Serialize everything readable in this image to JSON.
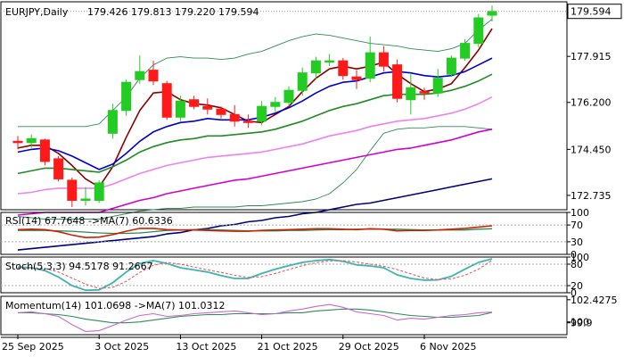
{
  "chart_data": {
    "type": "candlestick",
    "main": {
      "title": "EURJPY,Daily",
      "ohlc_text": "179.426 179.813 179.220 179.594",
      "last_price": "179.594",
      "last_price_value": 179.594,
      "ylim": [
        172.2,
        179.95
      ],
      "yticks": [
        {
          "value": 179.594,
          "label": "179.594"
        },
        {
          "value": 177.915,
          "label": "177.915"
        },
        {
          "value": 176.2,
          "label": "176.200"
        },
        {
          "value": 174.45,
          "label": "174.450"
        },
        {
          "value": 172.735,
          "label": "172.735"
        }
      ],
      "candles": [
        {
          "date": "2025-09-25",
          "o": 174.75,
          "h": 174.95,
          "l": 174.45,
          "c": 174.7
        },
        {
          "date": "2025-09-26",
          "o": 174.7,
          "h": 175.0,
          "l": 174.5,
          "c": 174.85
        },
        {
          "date": "2025-09-29",
          "o": 174.8,
          "h": 174.85,
          "l": 173.85,
          "c": 174.0
        },
        {
          "date": "2025-09-30",
          "o": 174.1,
          "h": 174.2,
          "l": 173.25,
          "c": 173.35
        },
        {
          "date": "2025-10-01",
          "o": 173.3,
          "h": 173.4,
          "l": 172.3,
          "c": 172.55
        },
        {
          "date": "2025-10-02",
          "o": 172.6,
          "h": 173.05,
          "l": 172.35,
          "c": 172.6
        },
        {
          "date": "2025-10-03",
          "o": 172.55,
          "h": 173.3,
          "l": 172.45,
          "c": 173.2
        },
        {
          "date": "2025-10-06",
          "o": 175.05,
          "h": 176.15,
          "l": 174.85,
          "c": 175.9
        },
        {
          "date": "2025-10-07",
          "o": 175.9,
          "h": 177.05,
          "l": 175.7,
          "c": 176.95
        },
        {
          "date": "2025-10-08",
          "o": 177.05,
          "h": 177.95,
          "l": 176.9,
          "c": 177.35
        },
        {
          "date": "2025-10-09",
          "o": 177.4,
          "h": 177.75,
          "l": 176.85,
          "c": 177.0
        },
        {
          "date": "2025-10-10",
          "o": 176.9,
          "h": 177.0,
          "l": 175.55,
          "c": 175.65
        },
        {
          "date": "2025-10-13",
          "o": 175.65,
          "h": 176.45,
          "l": 175.5,
          "c": 176.25
        },
        {
          "date": "2025-10-14",
          "o": 176.3,
          "h": 176.45,
          "l": 175.95,
          "c": 176.05
        },
        {
          "date": "2025-10-15",
          "o": 176.05,
          "h": 176.35,
          "l": 175.75,
          "c": 175.95
        },
        {
          "date": "2025-10-16",
          "o": 175.95,
          "h": 176.05,
          "l": 175.6,
          "c": 175.75
        },
        {
          "date": "2025-10-17",
          "o": 175.75,
          "h": 176.1,
          "l": 175.3,
          "c": 175.5
        },
        {
          "date": "2025-10-20",
          "o": 175.5,
          "h": 175.75,
          "l": 175.25,
          "c": 175.45
        },
        {
          "date": "2025-10-21",
          "o": 175.5,
          "h": 176.25,
          "l": 175.35,
          "c": 176.05
        },
        {
          "date": "2025-10-22",
          "o": 176.05,
          "h": 176.4,
          "l": 175.85,
          "c": 176.2
        },
        {
          "date": "2025-10-23",
          "o": 176.2,
          "h": 176.8,
          "l": 176.05,
          "c": 176.65
        },
        {
          "date": "2025-10-24",
          "o": 176.65,
          "h": 177.5,
          "l": 176.45,
          "c": 177.3
        },
        {
          "date": "2025-10-27",
          "o": 177.3,
          "h": 177.9,
          "l": 177.05,
          "c": 177.75
        },
        {
          "date": "2025-10-28",
          "o": 177.7,
          "h": 178.0,
          "l": 177.55,
          "c": 177.75
        },
        {
          "date": "2025-10-29",
          "o": 177.75,
          "h": 177.85,
          "l": 177.05,
          "c": 177.2
        },
        {
          "date": "2025-10-30",
          "o": 177.15,
          "h": 177.4,
          "l": 176.7,
          "c": 177.05
        },
        {
          "date": "2025-10-31",
          "o": 177.1,
          "h": 178.65,
          "l": 176.95,
          "c": 178.05
        },
        {
          "date": "2025-11-03",
          "o": 178.05,
          "h": 178.3,
          "l": 177.35,
          "c": 177.55
        },
        {
          "date": "2025-11-04",
          "o": 177.6,
          "h": 177.8,
          "l": 176.2,
          "c": 176.35
        },
        {
          "date": "2025-11-05",
          "o": 176.3,
          "h": 177.25,
          "l": 175.75,
          "c": 176.75
        },
        {
          "date": "2025-11-06",
          "o": 176.6,
          "h": 176.75,
          "l": 176.3,
          "c": 176.55
        },
        {
          "date": "2025-11-07",
          "o": 176.55,
          "h": 177.45,
          "l": 176.4,
          "c": 177.1
        },
        {
          "date": "2025-11-10",
          "o": 177.25,
          "h": 177.95,
          "l": 177.15,
          "c": 177.85
        },
        {
          "date": "2025-11-11",
          "o": 177.85,
          "h": 178.55,
          "l": 177.75,
          "c": 178.4
        },
        {
          "date": "2025-11-12",
          "o": 178.4,
          "h": 179.5,
          "l": 178.25,
          "c": 179.35
        },
        {
          "date": "2025-11-13",
          "o": 179.45,
          "h": 179.81,
          "l": 179.22,
          "c": 179.59
        }
      ],
      "overlays": [
        {
          "color": "#8b0000",
          "values": [
            174.5,
            174.6,
            174.6,
            174.3,
            173.85,
            173.35,
            173.05,
            173.8,
            174.9,
            175.9,
            176.55,
            176.6,
            176.3,
            176.15,
            176.1,
            176.0,
            175.75,
            175.5,
            175.45,
            175.75,
            176.05,
            176.6,
            177.1,
            177.45,
            177.55,
            177.45,
            177.55,
            177.7,
            177.25,
            176.9,
            176.6,
            176.7,
            176.9,
            177.5,
            178.15,
            178.95
          ]
        },
        {
          "color": "#0000cd",
          "values": [
            174.35,
            174.45,
            174.5,
            174.4,
            174.2,
            173.95,
            173.7,
            173.9,
            174.3,
            174.75,
            175.1,
            175.3,
            175.45,
            175.5,
            175.6,
            175.55,
            175.55,
            175.55,
            175.65,
            175.8,
            176.0,
            176.25,
            176.55,
            176.8,
            176.95,
            177.0,
            177.15,
            177.3,
            177.35,
            177.3,
            177.2,
            177.15,
            177.2,
            177.35,
            177.6,
            177.85
          ]
        },
        {
          "color": "#228b22",
          "values": [
            173.55,
            173.65,
            173.75,
            173.75,
            173.7,
            173.65,
            173.6,
            173.8,
            174.05,
            174.35,
            174.55,
            174.7,
            174.8,
            174.85,
            174.95,
            174.95,
            175.0,
            175.05,
            175.1,
            175.2,
            175.35,
            175.5,
            175.7,
            175.9,
            176.05,
            176.15,
            176.3,
            176.45,
            176.5,
            176.5,
            176.5,
            176.55,
            176.65,
            176.8,
            177.0,
            177.25
          ]
        },
        {
          "color": "#ee82ee",
          "values": [
            172.8,
            172.85,
            172.95,
            173.0,
            173.0,
            173.0,
            173.0,
            173.15,
            173.35,
            173.55,
            173.7,
            173.85,
            173.95,
            174.05,
            174.15,
            174.2,
            174.25,
            174.3,
            174.35,
            174.45,
            174.55,
            174.65,
            174.8,
            174.95,
            175.05,
            175.15,
            175.3,
            175.4,
            175.5,
            175.55,
            175.6,
            175.7,
            175.8,
            175.95,
            176.15,
            176.4
          ]
        },
        {
          "color": "#d100d1",
          "values": [
            172.0,
            172.05,
            172.1,
            172.1,
            172.1,
            172.1,
            172.1,
            172.25,
            172.4,
            172.55,
            172.65,
            172.8,
            172.9,
            173.0,
            173.1,
            173.2,
            173.3,
            173.35,
            173.45,
            173.55,
            173.65,
            173.75,
            173.85,
            173.95,
            174.05,
            174.15,
            174.25,
            174.35,
            174.45,
            174.5,
            174.6,
            174.7,
            174.8,
            174.95,
            175.1,
            175.2
          ]
        },
        {
          "color": "#000080",
          "values": [
            170.7,
            170.75,
            170.8,
            170.85,
            170.9,
            170.95,
            171.0,
            171.05,
            171.1,
            171.15,
            171.2,
            171.3,
            171.35,
            171.45,
            171.5,
            171.6,
            171.65,
            171.75,
            171.8,
            171.9,
            171.95,
            172.05,
            172.1,
            172.2,
            172.3,
            172.4,
            172.45,
            172.55,
            172.65,
            172.75,
            172.85,
            172.95,
            173.05,
            173.15,
            173.25,
            173.35
          ]
        }
      ],
      "bands": [
        {
          "color": "#2e8b57",
          "values": [
            175.3,
            175.3,
            175.3,
            175.3,
            175.3,
            175.3,
            175.4,
            175.9,
            176.4,
            177.1,
            177.6,
            177.85,
            177.9,
            177.85,
            177.85,
            177.8,
            177.85,
            178.0,
            178.1,
            178.3,
            178.5,
            178.65,
            178.75,
            178.7,
            178.6,
            178.5,
            178.4,
            178.35,
            178.3,
            178.2,
            178.15,
            178.1,
            178.2,
            178.4,
            178.9,
            179.3
          ]
        },
        {
          "color": "#2e8b57",
          "values": [
            171.95,
            171.9,
            171.85,
            171.85,
            171.85,
            171.85,
            171.85,
            171.95,
            172.05,
            172.15,
            172.2,
            172.25,
            172.25,
            172.3,
            172.3,
            172.3,
            172.3,
            172.35,
            172.35,
            172.4,
            172.45,
            172.5,
            172.6,
            172.8,
            173.2,
            173.7,
            174.4,
            175.05,
            175.2,
            175.25,
            175.25,
            175.3,
            175.3,
            175.3,
            175.25,
            175.2
          ]
        }
      ]
    },
    "rsi": {
      "label": "RSI(14) 67.7648  ->MA(7) 60.6336",
      "ylim": [
        0,
        100
      ],
      "yticks": [
        {
          "value": 100,
          "label": "100"
        },
        {
          "value": 70,
          "label": "70"
        },
        {
          "value": 30,
          "label": "30"
        },
        {
          "value": 0,
          "label": "0"
        }
      ],
      "levels": [
        70,
        30
      ],
      "rsi": [
        59,
        60,
        59,
        54,
        46,
        40,
        41,
        47,
        55,
        62,
        62,
        59,
        58,
        58,
        57,
        56,
        55,
        55,
        57,
        58,
        59,
        60,
        61,
        61,
        60,
        59,
        61,
        60,
        56,
        57,
        57,
        58,
        60,
        62,
        65,
        68
      ],
      "ma": [
        57,
        57,
        57,
        56,
        55,
        53,
        51,
        50,
        50,
        51,
        54,
        57,
        58,
        59,
        59,
        58,
        57,
        56,
        56,
        56,
        57,
        57,
        58,
        59,
        59,
        60,
        60,
        60,
        60,
        59,
        58,
        58,
        58,
        58,
        60,
        61
      ]
    },
    "stoch": {
      "label": "Stoch(5,3,3) 94.5178 91.2667",
      "ylim": [
        0,
        100
      ],
      "yticks": [
        {
          "value": 100,
          "label": "100"
        },
        {
          "value": 80,
          "label": "80"
        },
        {
          "value": 20,
          "label": "20"
        },
        {
          "value": 0,
          "label": "0"
        }
      ],
      "levels": [
        80,
        20
      ],
      "k": [
        72,
        70,
        62,
        44,
        20,
        7,
        8,
        28,
        58,
        82,
        90,
        82,
        70,
        64,
        58,
        48,
        40,
        40,
        54,
        66,
        76,
        85,
        90,
        93,
        88,
        78,
        75,
        70,
        50,
        40,
        35,
        36,
        46,
        66,
        85,
        95
      ],
      "d": [
        68,
        70,
        68,
        58,
        41,
        24,
        12,
        15,
        32,
        57,
        77,
        85,
        80,
        72,
        64,
        57,
        49,
        43,
        45,
        54,
        65,
        76,
        84,
        89,
        90,
        86,
        80,
        74,
        65,
        53,
        41,
        37,
        39,
        49,
        66,
        91
      ]
    },
    "momentum": {
      "label": "Momentum(14) 101.0698  ->MA(7) 101.0312",
      "ylim": [
        98.6,
        102.8
      ],
      "yticks": [
        {
          "value": 102.4275,
          "label": "102.4275"
        },
        {
          "value": 100,
          "label": "100"
        },
        {
          "value": 99.9,
          "label": "99.9"
        }
      ],
      "momentum": [
        101.0,
        101.1,
        100.9,
        100.6,
        99.7,
        98.95,
        99.05,
        99.6,
        100.2,
        100.7,
        100.9,
        100.6,
        100.7,
        100.9,
        101.0,
        101.1,
        101.2,
        101.0,
        100.8,
        100.9,
        101.2,
        101.4,
        101.7,
        101.9,
        101.6,
        101.1,
        100.9,
        100.7,
        100.2,
        100.4,
        100.3,
        100.5,
        100.7,
        100.8,
        101.0,
        101.07
      ],
      "ma": [
        101.0,
        101.0,
        100.9,
        100.8,
        100.6,
        100.3,
        100.1,
        99.9,
        99.9,
        100.0,
        100.2,
        100.4,
        100.6,
        100.7,
        100.8,
        100.8,
        100.9,
        100.9,
        100.9,
        100.9,
        101.0,
        101.0,
        101.2,
        101.3,
        101.4,
        101.4,
        101.3,
        101.1,
        100.9,
        100.7,
        100.6,
        100.5,
        100.5,
        100.6,
        100.7,
        101.03
      ]
    },
    "xlabels": [
      {
        "index": 0,
        "label": "25 Sep 2025"
      },
      {
        "index": 6,
        "label": "3 Oct 2025"
      },
      {
        "index": 12,
        "label": "13 Oct 2025"
      },
      {
        "index": 18,
        "label": "21 Oct 2025"
      },
      {
        "index": 24,
        "label": "29 Oct 2025"
      },
      {
        "index": 30,
        "label": "6 Nov 2025"
      }
    ],
    "colors": {
      "bull": "#22cc22",
      "bear": "#ff1a1a",
      "rsi": "#cc2200",
      "rsi_ma": "#2e8b57",
      "stoch_k": "#3cb4b4",
      "stoch_d": "#e06060",
      "mom": "#cc66cc",
      "mom_ma": "#2e8b57"
    }
  }
}
